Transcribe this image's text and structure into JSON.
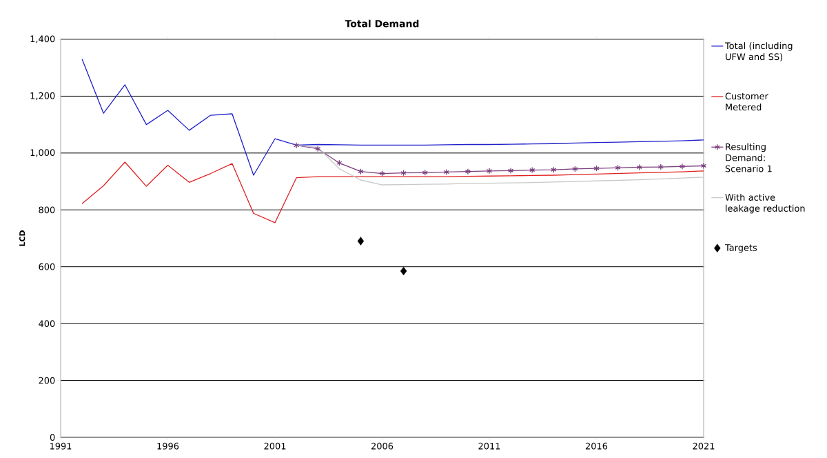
{
  "chart_data": {
    "type": "line",
    "title": "Total Demand",
    "ylabel": "LCD",
    "xlim": [
      1991,
      2021
    ],
    "xticks": [
      1991,
      1996,
      2001,
      2006,
      2011,
      2016,
      2021
    ],
    "ylim": [
      0,
      1400
    ],
    "yticks": [
      0,
      200,
      400,
      600,
      800,
      {
        "value": 1000,
        "label": "1,000"
      },
      {
        "value": 1200,
        "label": "1,200"
      },
      {
        "value": 1400,
        "label": "1,400"
      }
    ],
    "grid": "y",
    "legend": "right",
    "series": [
      {
        "name": "Total (including UFW and SS)",
        "color": "#1f1fcc",
        "x": [
          1992,
          1993,
          1994,
          1995,
          1996,
          1997,
          1998,
          1999,
          2000,
          2001,
          2002,
          2003,
          2004,
          2005,
          2006,
          2007,
          2008,
          2009,
          2010,
          2011,
          2012,
          2013,
          2014,
          2015,
          2016,
          2017,
          2018,
          2019,
          2020,
          2021
        ],
        "values": [
          1330,
          1140,
          1240,
          1100,
          1150,
          1080,
          1133,
          1138,
          922,
          1050,
          1028,
          1030,
          1029,
          1028,
          1028,
          1028,
          1028,
          1029,
          1030,
          1030,
          1031,
          1032,
          1033,
          1035,
          1037,
          1038,
          1040,
          1041,
          1043,
          1046
        ]
      },
      {
        "name": "Customer Metered",
        "color": "#e02020",
        "x": [
          1992,
          1993,
          1994,
          1995,
          1996,
          1997,
          1998,
          1999,
          2000,
          2001,
          2002,
          2003,
          2004,
          2005,
          2006,
          2007,
          2008,
          2009,
          2010,
          2011,
          2012,
          2013,
          2014,
          2015,
          2016,
          2017,
          2018,
          2019,
          2020,
          2021
        ],
        "values": [
          822,
          885,
          968,
          883,
          957,
          897,
          928,
          963,
          788,
          755,
          913,
          917,
          917,
          917,
          917,
          917,
          917,
          917,
          918,
          919,
          920,
          921,
          922,
          924,
          926,
          928,
          930,
          932,
          934,
          937
        ]
      },
      {
        "name": "Resulting Demand: Scenario 1",
        "color": "#7b3f7f",
        "marker": "cross",
        "x": [
          2002,
          2003,
          2004,
          2005,
          2006,
          2007,
          2008,
          2009,
          2010,
          2011,
          2012,
          2013,
          2014,
          2015,
          2016,
          2017,
          2018,
          2019,
          2020,
          2021
        ],
        "values": [
          1027,
          1015,
          965,
          935,
          928,
          930,
          931,
          933,
          935,
          937,
          938,
          940,
          941,
          944,
          946,
          948,
          950,
          951,
          953,
          955
        ]
      },
      {
        "name": "With active leakage reduction",
        "color": "#c8c8c8",
        "x": [
          2002,
          2003,
          2004,
          2005,
          2006,
          2007,
          2008,
          2009,
          2010,
          2011,
          2012,
          2013,
          2014,
          2015,
          2016,
          2017,
          2018,
          2019,
          2020,
          2021
        ],
        "values": [
          1027,
          1020,
          945,
          905,
          888,
          889,
          890,
          891,
          893,
          894,
          895,
          896,
          898,
          900,
          902,
          904,
          906,
          909,
          912,
          915
        ]
      },
      {
        "name": "Targets",
        "type": "scatter",
        "color": "#000000",
        "marker": "diamond",
        "x": [
          2005,
          2007
        ],
        "values": [
          690,
          585
        ]
      }
    ]
  }
}
